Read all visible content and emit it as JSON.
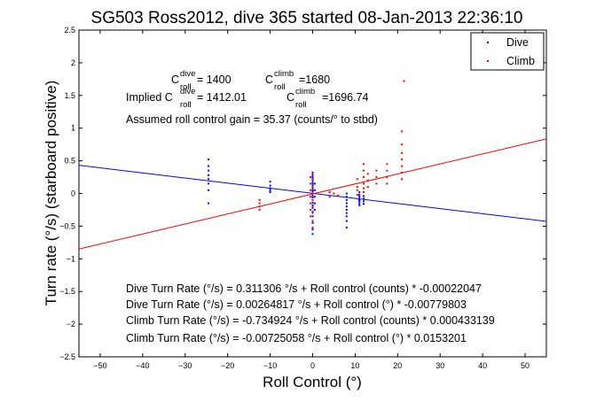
{
  "chart_data": {
    "type": "scatter",
    "title": "SG503 Ross2012, dive 365 started 08-Jan-2013 22:36:10",
    "xlabel": "Roll Control (°)",
    "ylabel": "Turn rate (°/s) (starboard positive)",
    "xlim": [
      -55,
      55
    ],
    "ylim": [
      -2.5,
      2.5
    ],
    "xticks": [
      -50,
      -40,
      -30,
      -20,
      -10,
      0,
      10,
      20,
      30,
      40,
      50
    ],
    "yticks": [
      -2.5,
      -2,
      -1.5,
      -1,
      -0.5,
      0,
      0.5,
      1,
      1.5,
      2,
      2.5
    ],
    "grid": false,
    "legend_position": "top-right",
    "series": [
      {
        "name": "Dive",
        "color": "#0000ff",
        "marker": "point",
        "points": [
          [
            -24.5,
            0.52
          ],
          [
            -24.5,
            0.42
          ],
          [
            -24.5,
            0.35
          ],
          [
            -24.5,
            0.28
          ],
          [
            -24.5,
            0.22
          ],
          [
            -24.5,
            0.15
          ],
          [
            -24.5,
            0.05
          ],
          [
            -24.5,
            -0.15
          ],
          [
            -10,
            0.18
          ],
          [
            -10,
            0.12
          ],
          [
            -10,
            0.08
          ],
          [
            -10,
            0.05
          ],
          [
            -10,
            0.02
          ],
          [
            0,
            0.32
          ],
          [
            0,
            0.28
          ],
          [
            0,
            0.25
          ],
          [
            0,
            0.22
          ],
          [
            0,
            0.2
          ],
          [
            0,
            0.18
          ],
          [
            0,
            0.15
          ],
          [
            0,
            0.12
          ],
          [
            0,
            0.1
          ],
          [
            0,
            0.08
          ],
          [
            0,
            0.05
          ],
          [
            0,
            0.03
          ],
          [
            0,
            0.0
          ],
          [
            0,
            -0.03
          ],
          [
            0,
            -0.06
          ],
          [
            0,
            -0.1
          ],
          [
            0,
            -0.14
          ],
          [
            0,
            -0.18
          ],
          [
            0,
            -0.22
          ],
          [
            0,
            -0.28
          ],
          [
            0,
            -0.35
          ],
          [
            0,
            -0.45
          ],
          [
            0,
            -0.55
          ],
          [
            0,
            -0.62
          ],
          [
            0.5,
            0.15
          ],
          [
            0.5,
            0.05
          ],
          [
            0.5,
            -0.05
          ],
          [
            0.5,
            -0.15
          ],
          [
            0.5,
            -0.25
          ],
          [
            8,
            0.0
          ],
          [
            8,
            -0.05
          ],
          [
            8,
            -0.1
          ],
          [
            8,
            -0.15
          ],
          [
            8,
            -0.2
          ],
          [
            8,
            -0.25
          ],
          [
            8,
            -0.3
          ],
          [
            8,
            -0.35
          ],
          [
            8,
            -0.42
          ],
          [
            8,
            -0.52
          ],
          [
            11,
            0.02
          ],
          [
            11,
            -0.02
          ],
          [
            11,
            -0.05
          ],
          [
            11,
            -0.08
          ],
          [
            11,
            -0.1
          ],
          [
            11,
            -0.12
          ],
          [
            11,
            -0.15
          ],
          [
            11,
            -0.18
          ],
          [
            12,
            -0.04
          ],
          [
            12,
            -0.08
          ],
          [
            12,
            -0.12
          ],
          [
            12,
            -0.16
          ]
        ]
      },
      {
        "name": "Climb",
        "color": "#ff0000",
        "marker": "point",
        "points": [
          [
            -12.5,
            -0.1
          ],
          [
            -12.5,
            -0.15
          ],
          [
            -12.5,
            -0.2
          ],
          [
            -12.5,
            -0.25
          ],
          [
            -0.5,
            0.25
          ],
          [
            -0.5,
            0.15
          ],
          [
            -0.5,
            0.05
          ],
          [
            -0.5,
            -0.05
          ],
          [
            -0.5,
            -0.15
          ],
          [
            -0.5,
            -0.25
          ],
          [
            -0.5,
            -0.35
          ],
          [
            0,
            0.3
          ],
          [
            0,
            0.2
          ],
          [
            0,
            0.1
          ],
          [
            0,
            0.0
          ],
          [
            0,
            -0.1
          ],
          [
            0,
            -0.2
          ],
          [
            0,
            -0.3
          ],
          [
            0,
            -0.42
          ],
          [
            0,
            -0.52
          ],
          [
            4,
            0.02
          ],
          [
            4,
            -0.05
          ],
          [
            5,
            0.0
          ],
          [
            6,
            -0.03
          ],
          [
            10.5,
            0.22
          ],
          [
            10.5,
            0.1
          ],
          [
            10.5,
            0.05
          ],
          [
            10.5,
            -0.02
          ],
          [
            12,
            0.45
          ],
          [
            12,
            0.35
          ],
          [
            12,
            0.25
          ],
          [
            12,
            0.15
          ],
          [
            12,
            0.08
          ],
          [
            12,
            0.02
          ],
          [
            13,
            0.3
          ],
          [
            13,
            0.2
          ],
          [
            13,
            0.1
          ],
          [
            15,
            0.35
          ],
          [
            15,
            0.25
          ],
          [
            15,
            0.15
          ],
          [
            17.5,
            0.45
          ],
          [
            17.5,
            0.35
          ],
          [
            17.5,
            0.25
          ],
          [
            17.5,
            0.15
          ],
          [
            21,
            0.95
          ],
          [
            21,
            0.75
          ],
          [
            21,
            0.62
          ],
          [
            21,
            0.52
          ],
          [
            21,
            0.42
          ],
          [
            21,
            0.32
          ],
          [
            21,
            0.22
          ],
          [
            21.5,
            1.72
          ]
        ]
      }
    ],
    "fit_lines": [
      {
        "series": "Dive",
        "color": "#0000ff",
        "slope": -0.00779803,
        "intercept": 0.00264817
      },
      {
        "series": "Climb",
        "color": "#ff0000",
        "slope": 0.0153201,
        "intercept": -0.00725058
      }
    ],
    "annotations": {
      "c_dive_main": "C",
      "c_dive_sup": "dive",
      "c_dive_sub": "roll",
      "c_dive_value": " = 1400",
      "c_climb_main": "C",
      "c_climb_sup": "climb",
      "c_climb_sub": "roll",
      "c_climb_value": " =1680",
      "implied_prefix": "Implied C",
      "implied_dive_sup": "dive",
      "implied_dive_sub": "roll",
      "implied_dive_value": " = 1412.01",
      "implied_climb_main": "C",
      "implied_climb_sup": "climb",
      "implied_climb_sub": "roll",
      "implied_climb_value": " =1696.74",
      "assumed_gain": "Assumed roll control gain = 35.37 (counts/° to stbd)",
      "fit_dive_counts": "Dive Turn Rate (°/s) = 0.311306 °/s + Roll control (counts) * -0.00022047",
      "fit_dive_deg": "Dive Turn Rate (°/s) = 0.00264817 °/s + Roll control (°) * -0.00779803",
      "fit_climb_counts": "Climb Turn Rate (°/s) = -0.734924 °/s + Roll control (counts) * 0.000433139",
      "fit_climb_deg": "Climb Turn Rate (°/s) = -0.00725058 °/s + Roll control (°) * 0.0153201"
    }
  }
}
